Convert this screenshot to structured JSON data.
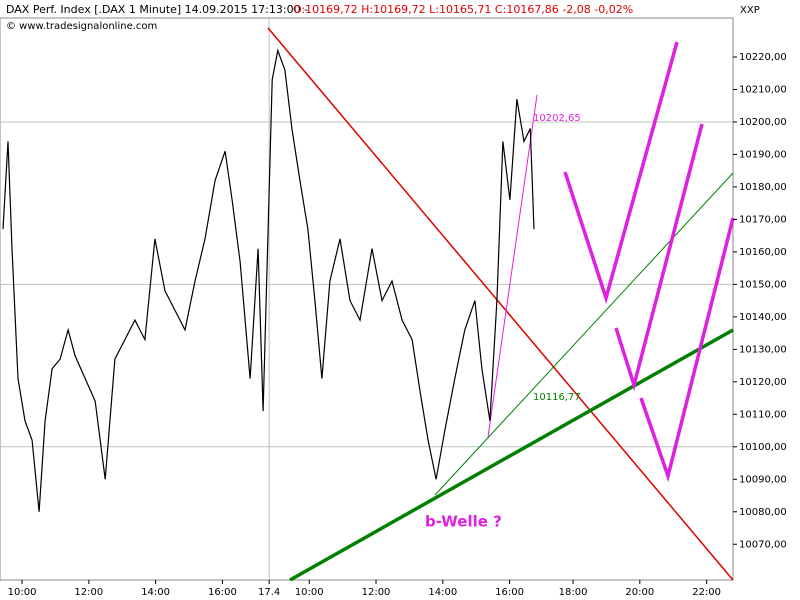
{
  "chart_data": {
    "type": "line",
    "title": "DAX Perf. Index [.DAX  1 Minute] 14.09.2015 17:13:00 -",
    "quote": "O:10169,72 H:10169,72 L:10165,71 C:10167,86 -2,08 -0,02%",
    "source": "© www.tradesignalonline.com",
    "axis_label": "XXP",
    "annotations": [
      "10202,65",
      "10116,77",
      "b-Welle ?"
    ],
    "x": [
      9.43,
      9.58,
      9.7,
      9.88,
      10.09,
      10.3,
      10.51,
      10.69,
      10.9,
      11.14,
      11.38,
      11.59,
      11.89,
      12.19,
      12.49,
      12.78,
      13.08,
      13.38,
      13.68,
      13.98,
      14.28,
      14.58,
      14.88,
      15.18,
      15.48,
      15.78,
      16.08,
      16.29,
      16.53,
      16.83,
      17.07,
      17.22,
      17.49,
      17.66,
      17.87,
      18.08,
      18.32,
      18.56,
      18.77,
      18.98,
      19.22,
      19.52,
      19.82,
      20.12,
      20.48,
      20.78,
      21.08,
      21.38,
      21.68,
      21.92,
      22.16,
      22.4,
      22.66,
      22.96,
      23.26,
      23.56,
      23.77,
      24.01,
      24.22,
      24.4,
      24.61,
      24.82,
      25.03,
      25.22,
      25.33
    ],
    "series": [
      {
        "name": "DAX Perf. Index",
        "color": "#000000",
        "values": [
          10167,
          10194,
          10161,
          10121,
          10108,
          10102,
          10080,
          10108,
          10124,
          10127,
          10136,
          10128,
          10121,
          10114,
          10090,
          10127,
          10133,
          10139,
          10133,
          10164,
          10148,
          10142,
          10136,
          10151,
          10164,
          10182,
          10191,
          10176,
          10157,
          10121,
          10161,
          10111,
          10213,
          10222,
          10216,
          10198,
          10182,
          10167,
          10145,
          10121,
          10151,
          10164,
          10145,
          10139,
          10161,
          10145,
          10151,
          10139,
          10133,
          10117,
          10102,
          10090,
          10105,
          10121,
          10136,
          10145,
          10124,
          10108,
          10145,
          10194,
          10176,
          10207,
          10194,
          10198,
          10167
        ]
      }
    ],
    "xlim": [
      9.34,
      31.29
    ],
    "xticks": [
      {
        "value": 10,
        "label": "10:00"
      },
      {
        "value": 12,
        "label": "12:00"
      },
      {
        "value": 14,
        "label": "14:00"
      },
      {
        "value": 16,
        "label": "16:00"
      },
      17.4,
      {
        "value": 18.6,
        "label": "10:00"
      },
      {
        "value": 20.6,
        "label": "12:00"
      },
      {
        "value": 22.6,
        "label": "14:00"
      },
      {
        "value": 24.6,
        "label": "16:00"
      },
      {
        "value": 26.5,
        "label": "18:00"
      },
      {
        "value": 28.5,
        "label": "20:00"
      },
      {
        "value": 30.5,
        "label": "22:00"
      }
    ],
    "ylim": [
      10059,
      10232
    ],
    "yticks": [
      {
        "value": 10070,
        "label": "10070,00"
      },
      {
        "value": 10080,
        "label": "10080,00"
      },
      {
        "value": 10090,
        "label": "10090,00"
      },
      {
        "value": 10100,
        "label": "10100,00"
      },
      {
        "value": 10110,
        "label": "10110,00"
      },
      {
        "value": 10120,
        "label": "10120,00"
      },
      {
        "value": 10130,
        "label": "10130,00"
      },
      {
        "value": 10140,
        "label": "10140,00"
      },
      {
        "value": 10150,
        "label": "10150,00"
      },
      {
        "value": 10160,
        "label": "10160,00"
      },
      {
        "value": 10170,
        "label": "10170,00"
      },
      {
        "value": 10180,
        "label": "10180,00"
      },
      {
        "value": 10190,
        "label": "10190,00"
      },
      {
        "value": 10200,
        "label": "10200,00"
      },
      {
        "value": 10210,
        "label": "10210,00"
      },
      {
        "value": 10220,
        "label": "10220,00"
      }
    ],
    "grid_color": "#b8c4b8"
  }
}
